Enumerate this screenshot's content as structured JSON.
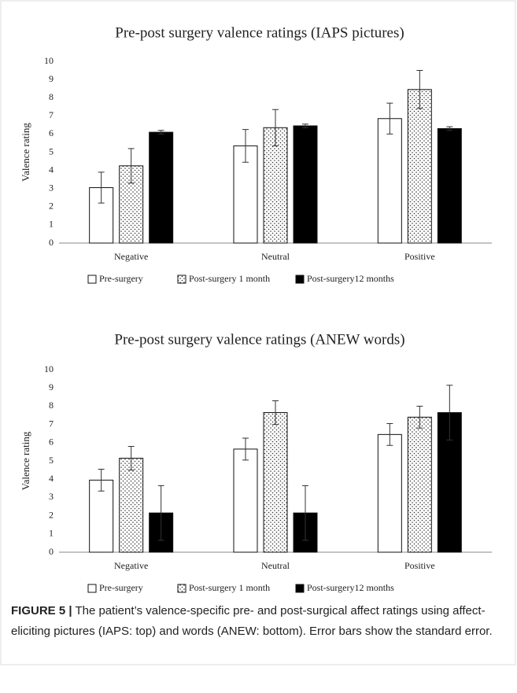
{
  "chart_data": [
    {
      "type": "bar",
      "title": "Pre-post surgery valence ratings (IAPS pictures)",
      "ylabel": "Valence rating",
      "categories": [
        "Negative",
        "Neutral",
        "Positive"
      ],
      "ylim": [
        0,
        10
      ],
      "yticks": [
        0,
        1,
        2,
        3,
        4,
        5,
        6,
        7,
        8,
        9,
        10
      ],
      "series": [
        {
          "name": "Pre-surgery",
          "color": "#ffffff",
          "values": [
            3.05,
            5.35,
            6.85
          ],
          "errors": [
            0.85,
            0.9,
            0.85
          ]
        },
        {
          "name": "Post-surgery 1 month",
          "color": "#ffffff",
          "pattern": "dots",
          "values": [
            4.25,
            6.35,
            8.45
          ],
          "errors": [
            0.95,
            1.0,
            1.05
          ]
        },
        {
          "name": "Post-surgery12 months",
          "color": "#000000",
          "values": [
            6.1,
            6.45,
            6.3
          ],
          "errors": [
            0.1,
            0.1,
            0.1
          ]
        }
      ]
    },
    {
      "type": "bar",
      "title": "Pre-post surgery valence ratings (ANEW words)",
      "ylabel": "Valence rating",
      "categories": [
        "Negative",
        "Neutral",
        "Positive"
      ],
      "ylim": [
        0,
        10
      ],
      "yticks": [
        0,
        1,
        2,
        3,
        4,
        5,
        6,
        7,
        8,
        9,
        10
      ],
      "series": [
        {
          "name": "Pre-surgery",
          "color": "#ffffff",
          "values": [
            3.95,
            5.65,
            6.45
          ],
          "errors": [
            0.6,
            0.6,
            0.6
          ]
        },
        {
          "name": "Post-surgery 1 month",
          "color": "#ffffff",
          "pattern": "dots",
          "values": [
            5.15,
            7.65,
            7.4
          ],
          "errors": [
            0.65,
            0.65,
            0.6
          ]
        },
        {
          "name": "Post-surgery12 months",
          "color": "#000000",
          "values": [
            2.15,
            2.15,
            7.65
          ],
          "errors": [
            1.5,
            1.5,
            1.5
          ]
        }
      ]
    }
  ],
  "caption": {
    "label": "FIGURE 5 |",
    "text": "The patient’s valence-specific pre- and post-surgical affect ratings using affect-eliciting pictures (IAPS: top) and words (ANEW: bottom). Error bars show the standard error."
  }
}
